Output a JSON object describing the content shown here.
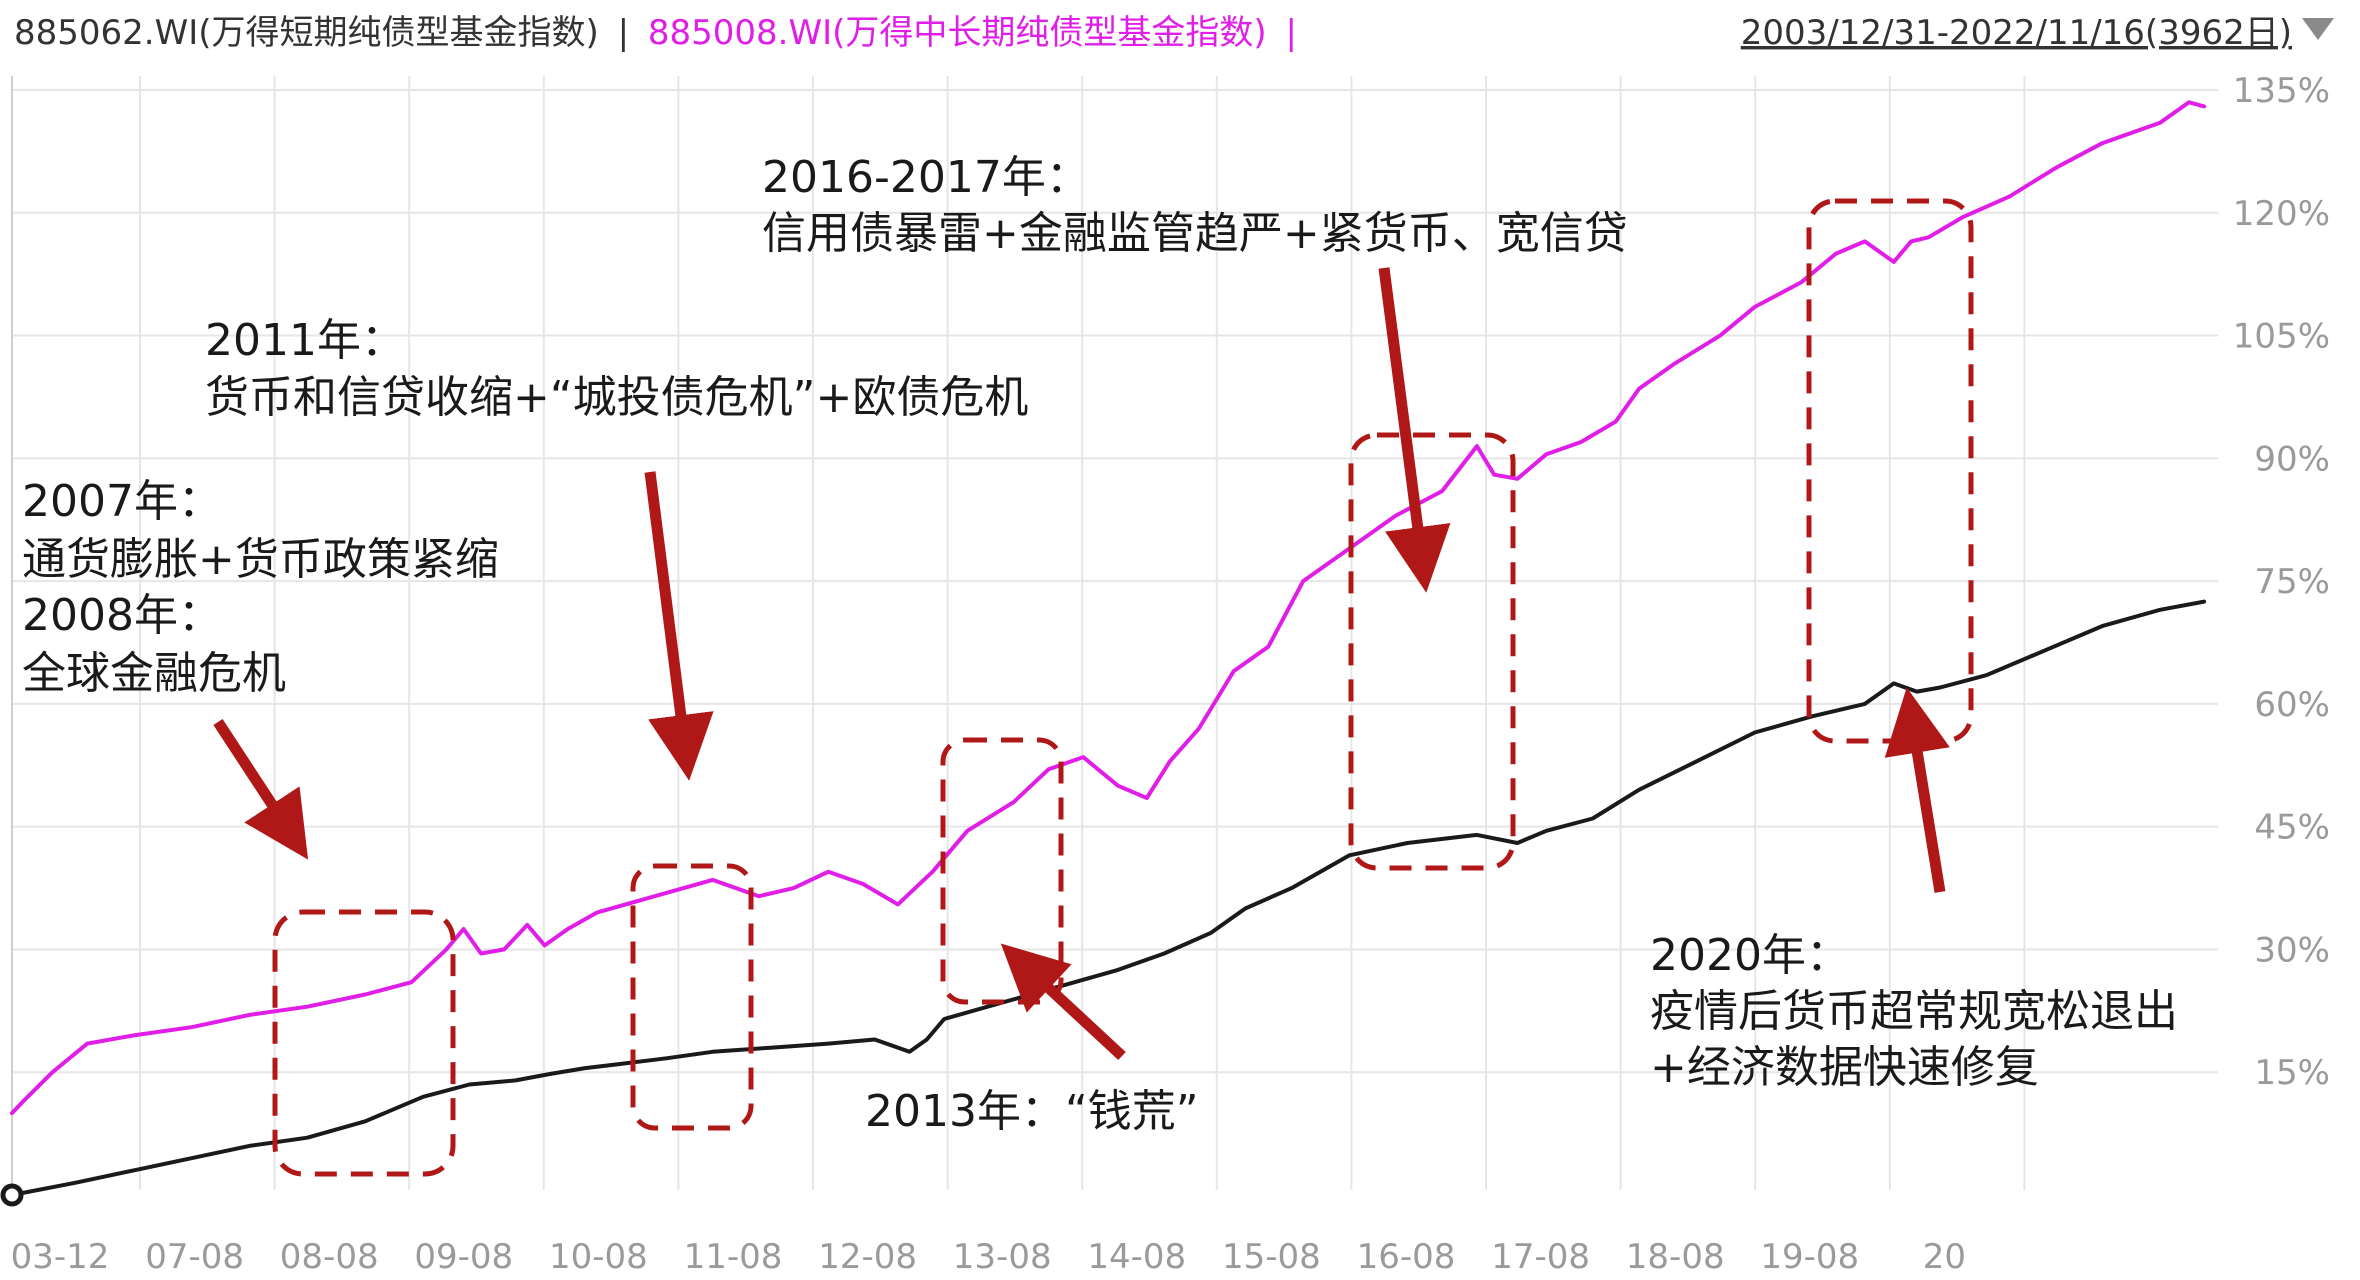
{
  "header": {
    "series1_label": "885062.WI(万得短期纯债型基金指数)",
    "separator1": "|",
    "series2_label": "885008.WI(万得中长期纯债型基金指数)",
    "separator2": "|",
    "date_range": "2003/12/31-2022/11/16(3962日)",
    "dropdown_icon": "triangle-down-icon"
  },
  "colors": {
    "series1": "#1a1a1a",
    "series2": "#e01ee8",
    "annotation": "#b01818",
    "grid": "#e6e6e6",
    "tick": "#9a9a9a"
  },
  "chart_data": {
    "type": "line",
    "x_ticks": [
      "03-12",
      "07-08",
      "08-08",
      "09-08",
      "10-08",
      "11-08",
      "12-08",
      "13-08",
      "14-08",
      "15-08",
      "16-08",
      "17-08",
      "18-08",
      "19-08",
      "20"
    ],
    "y_ticks": [
      "15%",
      "30%",
      "45%",
      "60%",
      "75%",
      "90%",
      "105%",
      "120%",
      "135%"
    ],
    "ylim": [
      0,
      135
    ],
    "grid": true,
    "series": [
      {
        "name": "885062.WI(万得短期纯债型基金指数)",
        "x": [
          2003.95,
          2004.5,
          2005.0,
          2005.5,
          2006.0,
          2006.5,
          2007.0,
          2007.5,
          2007.9,
          2008.3,
          2008.6,
          2008.9,
          2009.2,
          2009.6,
          2010.0,
          2010.5,
          2011.0,
          2011.4,
          2011.7,
          2011.85,
          2012.0,
          2012.5,
          2013.0,
          2013.5,
          2013.9,
          2014.3,
          2014.6,
          2015.0,
          2015.5,
          2016.0,
          2016.6,
          2016.95,
          2017.2,
          2017.6,
          2018.0,
          2018.5,
          2019.0,
          2019.5,
          2019.95,
          2020.2,
          2020.4,
          2020.6,
          2021.0,
          2021.5,
          2022.0,
          2022.5,
          2022.88
        ],
        "values": [
          0.0,
          1.5,
          3.0,
          4.5,
          6.0,
          7.0,
          9.0,
          12.0,
          13.5,
          14.0,
          14.8,
          15.5,
          16.0,
          16.7,
          17.5,
          18.0,
          18.5,
          19.0,
          17.5,
          19.0,
          21.5,
          23.5,
          25.5,
          27.5,
          29.5,
          32.0,
          35.0,
          37.5,
          41.5,
          43.0,
          44.0,
          43.0,
          44.5,
          46.0,
          49.5,
          53.0,
          56.5,
          58.5,
          60.0,
          62.5,
          61.5,
          62.0,
          63.5,
          66.5,
          69.5,
          71.5,
          72.5
        ]
      },
      {
        "name": "885008.WI(万得中长期纯债型基金指数)",
        "x": [
          2003.95,
          2004.05,
          2004.3,
          2004.6,
          2005.0,
          2005.5,
          2006.0,
          2006.5,
          2007.0,
          2007.4,
          2007.7,
          2007.85,
          2008.0,
          2008.2,
          2008.4,
          2008.55,
          2008.75,
          2009.0,
          2009.5,
          2010.0,
          2010.4,
          2010.7,
          2011.0,
          2011.3,
          2011.6,
          2011.75,
          2011.9,
          2012.2,
          2012.6,
          2012.9,
          2013.2,
          2013.5,
          2013.75,
          2013.95,
          2014.2,
          2014.5,
          2014.8,
          2015.1,
          2015.5,
          2015.9,
          2016.3,
          2016.6,
          2016.75,
          2016.95,
          2017.2,
          2017.5,
          2017.8,
          2018.0,
          2018.3,
          2018.7,
          2019.0,
          2019.4,
          2019.7,
          2019.95,
          2020.2,
          2020.35,
          2020.5,
          2020.8,
          2021.2,
          2021.6,
          2022.0,
          2022.5,
          2022.75,
          2022.88
        ],
        "values": [
          10.0,
          11.5,
          15.0,
          18.5,
          19.5,
          20.5,
          22.0,
          23.0,
          24.5,
          26.0,
          30.0,
          32.5,
          29.5,
          30.0,
          33.0,
          30.5,
          32.5,
          34.5,
          36.5,
          38.5,
          36.5,
          37.5,
          39.5,
          38.0,
          35.5,
          37.5,
          39.5,
          44.5,
          48.0,
          52.0,
          53.5,
          50.0,
          48.5,
          53.0,
          57.0,
          64.0,
          67.0,
          75.0,
          79.0,
          83.0,
          86.0,
          91.5,
          88.0,
          87.5,
          90.5,
          92.0,
          94.5,
          98.5,
          101.5,
          105.0,
          108.5,
          111.5,
          115.0,
          116.5,
          114.0,
          116.5,
          117.0,
          119.5,
          122.0,
          125.5,
          128.5,
          131.0,
          133.5,
          133.0
        ]
      }
    ]
  },
  "annotations": {
    "a2007_title": "2007年：",
    "a2007_desc": "通货膨胀+货币政策紧缩",
    "a2008_title": "2008年：",
    "a2008_desc": "全球金融危机",
    "a2011_title": "2011年：",
    "a2011_desc": "货币和信贷收缩+“城投债危机”+欧债危机",
    "a2013": "2013年：“钱荒”",
    "a2016_title": "2016-2017年：",
    "a2016_desc": "信用债暴雷+金融监管趋严+紧货币、宽信贷",
    "a2020_title": "2020年：",
    "a2020_desc1": "疫情后货币超常规宽松退出",
    "a2020_desc2": "+经济数据快速修复"
  }
}
